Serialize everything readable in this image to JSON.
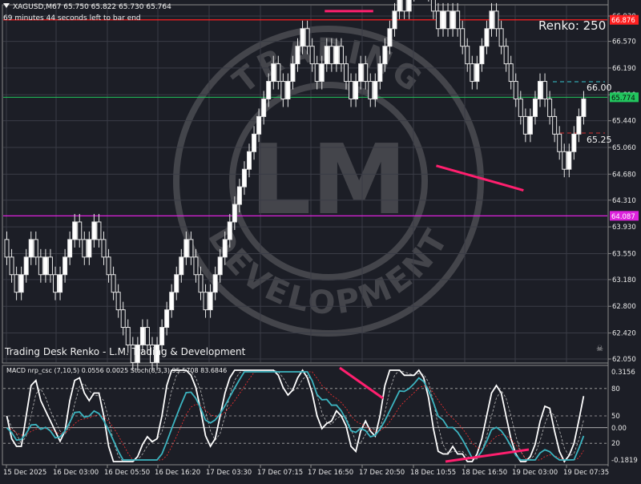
{
  "header": {
    "symbol_line": "XAGUSD,M67  65.750 65.822 65.730 65.764",
    "timer": "69 minutes 44 seconds left to bar end"
  },
  "renko_label": "Renko: 250",
  "footer_label": "Trading Desk Renko - L.M. Trading & Development",
  "watermark": {
    "initials": "LM",
    "ring_text": "TRADING DEVELOPMENT"
  },
  "price_axis": {
    "ticks": [
      "66.930",
      "66.570",
      "66.190",
      "65.810",
      "65.440",
      "65.060",
      "64.680",
      "64.310",
      "63.930",
      "63.550",
      "63.180",
      "62.800",
      "62.420",
      "62.050"
    ],
    "current_price": "65.774",
    "red_line_price": "66.876",
    "magenta_line_price": "64.087",
    "level_high_label": "66.00",
    "level_low_label": "65.25"
  },
  "time_axis": {
    "labels": [
      "15 Dec 2025",
      "16 Dec 03:00",
      "16 Dec 05:50",
      "16 Dec 16:20",
      "17 Dec 03:30",
      "17 Dec 07:15",
      "17 Dec 16:50",
      "17 Dec 20:50",
      "18 Dec 10:55",
      "18 Dec 16:50",
      "19 Dec 03:00",
      "19 Dec 07:35"
    ]
  },
  "indicator": {
    "title": "MACD nrp_csc (7,10,5) 0.0556 0.0025  Stoch(8,3,3) 95.5708 83.6846",
    "ticks": [
      "0.3156",
      "80",
      "50",
      "0.00",
      "20",
      "-0.1819"
    ]
  },
  "colors": {
    "background": "#1c1e26",
    "bull": "#ffffff",
    "bear": "#1c1e26",
    "current_price_line": "#22c55e",
    "high_line": "#ff2020",
    "low_line": "#dd22dd",
    "divergence": "#ff1f6e",
    "macd": "#3cb4c0",
    "macd_signal": "#ff3030",
    "stoch_k": "#ffffff",
    "stoch_d": "#bbbbbb"
  },
  "chart_data": {
    "type": "renko",
    "brick_size": 0.25,
    "start_price": 63.75,
    "bricks": [
      0,
      0,
      0,
      1,
      1,
      1,
      0,
      0,
      1,
      0,
      0,
      1,
      1,
      1,
      1,
      0,
      0,
      1,
      1,
      0,
      0,
      0,
      0,
      0,
      0,
      0,
      0,
      1,
      1,
      0,
      0,
      1,
      1,
      1,
      1,
      1,
      1,
      1,
      0,
      0,
      0,
      0,
      1,
      1,
      1,
      1,
      1,
      1,
      1,
      1,
      1,
      1,
      1,
      1,
      1,
      1,
      0,
      0,
      1,
      1,
      1,
      1,
      0,
      0,
      0,
      1,
      1,
      0,
      1,
      0,
      0,
      0,
      1,
      1,
      0,
      0,
      1,
      1,
      1,
      1,
      1,
      1,
      0,
      1,
      1,
      1,
      0,
      0,
      0,
      0,
      1,
      0,
      1,
      0,
      0,
      0,
      0,
      1,
      1,
      1,
      1,
      0,
      0,
      0,
      0,
      0,
      0,
      0,
      1,
      1,
      1,
      0,
      0,
      0,
      0,
      0,
      1,
      1,
      1,
      1
    ],
    "levels": {
      "high_line": 66.876,
      "low_line": 64.087,
      "current": 65.774
    },
    "divergence_lines": [
      {
        "from": {
          "brick": 66,
          "price": 67.0
        },
        "to": {
          "brick": 76,
          "price": 67.0
        }
      },
      {
        "from": {
          "brick": 89,
          "price": 64.8
        },
        "to": {
          "brick": 107,
          "price": 64.45
        }
      }
    ],
    "oscillator": {
      "stoch_levels": [
        80,
        50,
        20
      ],
      "macd_range": [
        -0.1819,
        0.3156
      ]
    }
  }
}
